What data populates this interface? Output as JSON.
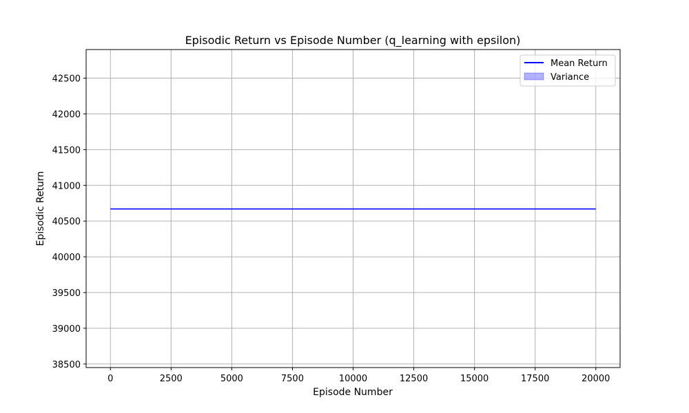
{
  "chart_data": {
    "type": "line",
    "title": "Episodic Return vs Episode Number (q_learning with epsilon)",
    "xlabel": "Episode Number",
    "ylabel": "Episodic Return",
    "xlim": [
      -1000,
      21000
    ],
    "ylim": [
      38450,
      42900
    ],
    "xticks": [
      0,
      2500,
      5000,
      7500,
      10000,
      12500,
      15000,
      17500,
      20000
    ],
    "yticks": [
      38500,
      39000,
      39500,
      40000,
      40500,
      41000,
      41500,
      42000,
      42500
    ],
    "grid": true,
    "legend_position": "top-right",
    "series": [
      {
        "name": "Mean Return",
        "kind": "line",
        "color": "#0000ff",
        "x": [
          0,
          20000
        ],
        "y": [
          40670,
          40670
        ]
      },
      {
        "name": "Variance",
        "kind": "fill",
        "color": "#0000ff",
        "x": [
          0,
          20000
        ],
        "y_low": [
          40670,
          40670
        ],
        "y_high": [
          40670,
          40670
        ]
      }
    ]
  }
}
